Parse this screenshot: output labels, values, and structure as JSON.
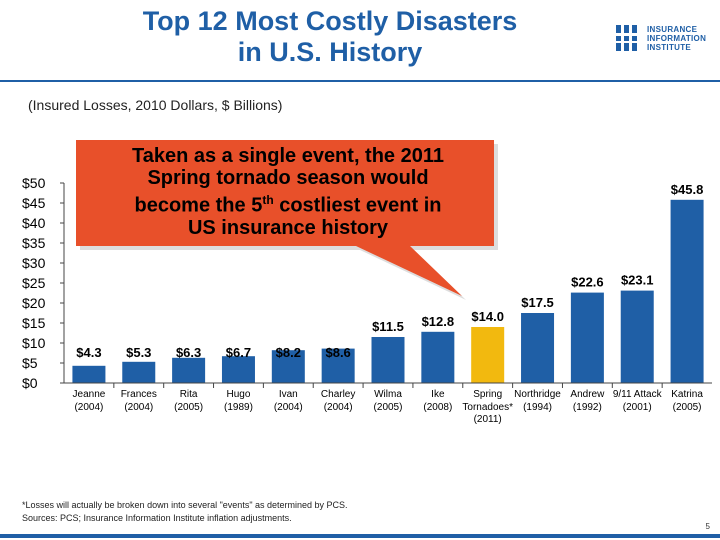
{
  "title_line1": "Top 12 Most Costly Disasters",
  "title_line2": "in U.S. History",
  "subtitle": "(Insured Losses, 2010 Dollars, $ Billions)",
  "logo": {
    "line1": "INSURANCE",
    "line2": "INFORMATION",
    "line3": "INSTITUTE"
  },
  "callout": {
    "line1": "Taken as a single event, the 2011",
    "line2": "Spring tornado season would",
    "line3_pre": "become the 5",
    "line3_sup": "th",
    "line3_post": " costliest event in",
    "line4": "US insurance history"
  },
  "footnote": "*Losses will actually be broken down into several \"events\" as determined by PCS.",
  "sources": "Sources: PCS; Insurance Information Institute inflation adjustments.",
  "page_number": "5",
  "colors": {
    "title": "#1f5fa6",
    "bar": "#1f5fa6",
    "highlight": "#f2b90f",
    "callout": "#e8502a"
  },
  "chart_data": {
    "type": "bar",
    "title": "Top 12 Most Costly Disasters in U.S. History",
    "ylabel": "Insured Losses, 2010 Dollars, $ Billions",
    "ylim": [
      0,
      50
    ],
    "yticks": [
      "$0",
      "$5",
      "$10",
      "$15",
      "$20",
      "$25",
      "$30",
      "$35",
      "$40",
      "$45",
      "$50"
    ],
    "categories": [
      {
        "name": "Jeanne",
        "year": "(2004)",
        "value": 4.3,
        "label": "$4.3"
      },
      {
        "name": "Frances",
        "year": "(2004)",
        "value": 5.3,
        "label": "$5.3"
      },
      {
        "name": "Rita",
        "year": "(2005)",
        "value": 6.3,
        "label": "$6.3"
      },
      {
        "name": "Hugo",
        "year": "(1989)",
        "value": 6.7,
        "label": "$6.7"
      },
      {
        "name": "Ivan",
        "year": "(2004)",
        "value": 8.2,
        "label": "$8.2"
      },
      {
        "name": "Charley",
        "year": "(2004)",
        "value": 8.6,
        "label": "$8.6"
      },
      {
        "name": "Wilma",
        "year": "(2005)",
        "value": 11.5,
        "label": "$11.5"
      },
      {
        "name": "Ike",
        "year": "(2008)",
        "value": 12.8,
        "label": "$12.8"
      },
      {
        "name": "Spring",
        "name2": "Tornadoes*",
        "year": "(2011)",
        "value": 14.0,
        "label": "$14.0",
        "highlight": true
      },
      {
        "name": "Northridge",
        "year": "(1994)",
        "value": 17.5,
        "label": "$17.5"
      },
      {
        "name": "Andrew",
        "year": "(1992)",
        "value": 22.6,
        "label": "$22.6"
      },
      {
        "name": "9/11 Attack",
        "year": "(2001)",
        "value": 23.1,
        "label": "$23.1"
      },
      {
        "name": "Katrina",
        "year": "(2005)",
        "value": 45.8,
        "label": "$45.8"
      }
    ]
  }
}
